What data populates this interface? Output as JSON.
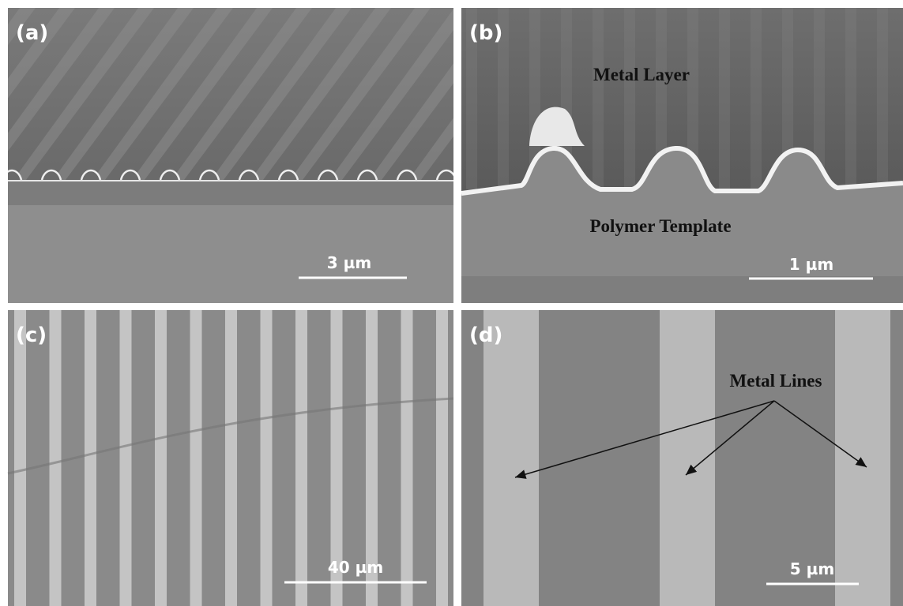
{
  "panels": [
    {
      "label": "(a)",
      "scale_bar": "3 µm"
    },
    {
      "label": "(b)",
      "annotations": [
        "Metal Layer",
        "Polymer Template"
      ],
      "scale_bar": "1 µm"
    },
    {
      "label": "(c)",
      "scale_bar": "40 µm"
    },
    {
      "label": "(d)",
      "annotations": [
        "Metal Lines"
      ],
      "scale_bar": "5 µm"
    }
  ]
}
